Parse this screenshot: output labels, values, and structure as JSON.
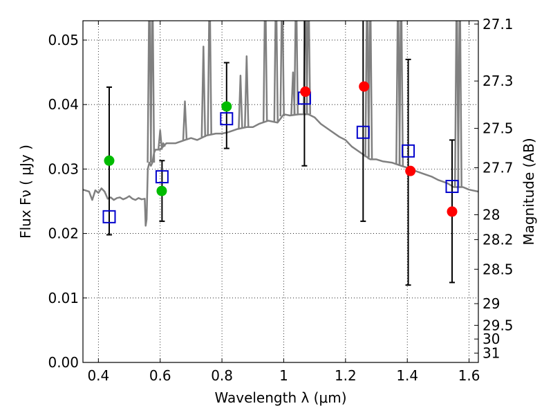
{
  "chart_data": {
    "type": "scatter",
    "xlabel": "Wavelength  λ (μm)",
    "ylabel_left": "Flux  Fν  ( μJy )",
    "ylabel_right": "Magnitude (AB)",
    "xlim": [
      0.35,
      1.63
    ],
    "ylim": [
      0.0,
      0.053
    ],
    "grid": true,
    "x_ticks": [
      0.4,
      0.6,
      0.8,
      1.0,
      1.2,
      1.4,
      1.6
    ],
    "x_tick_labels": [
      "0.4",
      "0.6",
      "0.8",
      "1",
      "1.2",
      "1.4",
      "1.6"
    ],
    "y_ticks": [
      0.0,
      0.01,
      0.02,
      0.03,
      0.04,
      0.05
    ],
    "y_tick_labels": [
      "0.00",
      "0.01",
      "0.02",
      "0.03",
      "0.04",
      "0.05"
    ],
    "mag_tick_labels": [
      "27.1",
      "27.3",
      "27.5",
      "27.7",
      "28",
      "28.2",
      "28.5",
      "29",
      "29.5",
      "30",
      "31"
    ],
    "mag_tick_values": [
      27.1,
      27.3,
      27.5,
      27.7,
      28.0,
      28.2,
      28.5,
      29.0,
      29.5,
      30.0,
      31.0
    ],
    "colors": {
      "model": "#808080",
      "green": "#00bb00",
      "red": "#ff0000",
      "box": "#0000cc",
      "error": "#000000"
    },
    "model_spectrum": {
      "x": [
        0.35,
        0.37,
        0.38,
        0.39,
        0.4,
        0.41,
        0.42,
        0.43,
        0.44,
        0.45,
        0.46,
        0.47,
        0.48,
        0.49,
        0.5,
        0.51,
        0.52,
        0.53,
        0.54,
        0.55,
        0.553,
        0.556,
        0.56,
        0.565,
        0.57,
        0.575,
        0.58,
        0.585,
        0.6,
        0.62,
        0.65,
        0.68,
        0.7,
        0.72,
        0.75,
        0.78,
        0.8,
        0.82,
        0.85,
        0.88,
        0.9,
        0.92,
        0.95,
        0.98,
        1.0,
        1.02,
        1.05,
        1.08,
        1.1,
        1.12,
        1.15,
        1.18,
        1.2,
        1.22,
        1.25,
        1.28,
        1.3,
        1.32,
        1.35,
        1.38,
        1.4,
        1.42,
        1.45,
        1.48,
        1.5,
        1.53,
        1.55,
        1.58,
        1.6,
        1.63
      ],
      "y": [
        0.0268,
        0.0265,
        0.0252,
        0.0267,
        0.0263,
        0.027,
        0.0265,
        0.0254,
        0.0256,
        0.0252,
        0.0255,
        0.0256,
        0.0253,
        0.0255,
        0.0258,
        0.0254,
        0.0252,
        0.0255,
        0.0253,
        0.0254,
        0.0212,
        0.0222,
        0.03,
        0.031,
        0.0305,
        0.031,
        0.0325,
        0.033,
        0.033,
        0.034,
        0.034,
        0.0345,
        0.0348,
        0.0345,
        0.0352,
        0.0355,
        0.0355,
        0.0357,
        0.0362,
        0.0365,
        0.0365,
        0.037,
        0.0375,
        0.0372,
        0.0385,
        0.0383,
        0.0385,
        0.0385,
        0.038,
        0.037,
        0.036,
        0.035,
        0.0345,
        0.0335,
        0.0325,
        0.0315,
        0.0315,
        0.0312,
        0.031,
        0.0305,
        0.0302,
        0.0298,
        0.0293,
        0.0288,
        0.0283,
        0.0278,
        0.0272,
        0.0272,
        0.0268,
        0.0265
      ]
    },
    "emission_lines": [
      {
        "x": 0.565,
        "y": 0.06
      },
      {
        "x": 0.575,
        "y": 0.06
      },
      {
        "x": 0.6,
        "y": 0.036
      },
      {
        "x": 0.61,
        "y": 0.034
      },
      {
        "x": 0.68,
        "y": 0.0405
      },
      {
        "x": 0.74,
        "y": 0.049
      },
      {
        "x": 0.76,
        "y": 0.06
      },
      {
        "x": 0.86,
        "y": 0.0445
      },
      {
        "x": 0.88,
        "y": 0.0475
      },
      {
        "x": 0.94,
        "y": 0.06
      },
      {
        "x": 0.975,
        "y": 0.06
      },
      {
        "x": 0.995,
        "y": 0.06
      },
      {
        "x": 1.03,
        "y": 0.045
      },
      {
        "x": 1.04,
        "y": 0.06
      },
      {
        "x": 1.07,
        "y": 0.06
      },
      {
        "x": 1.08,
        "y": 0.06
      },
      {
        "x": 1.27,
        "y": 0.06
      },
      {
        "x": 1.28,
        "y": 0.06
      },
      {
        "x": 1.37,
        "y": 0.06
      },
      {
        "x": 1.38,
        "y": 0.06
      },
      {
        "x": 1.56,
        "y": 0.06
      },
      {
        "x": 1.57,
        "y": 0.06
      }
    ],
    "green_points": [
      {
        "x": 0.435,
        "y": 0.0313
      },
      {
        "x": 0.605,
        "y": 0.0266
      },
      {
        "x": 0.815,
        "y": 0.0397
      }
    ],
    "red_points": [
      {
        "x": 1.07,
        "y": 0.042
      },
      {
        "x": 1.26,
        "y": 0.0428
      },
      {
        "x": 1.41,
        "y": 0.0297
      },
      {
        "x": 1.545,
        "y": 0.0234
      }
    ],
    "boxes": [
      {
        "x": 0.435,
        "y": 0.0226,
        "err_low": 0.0198,
        "err_high": 0.0427
      },
      {
        "x": 0.606,
        "y": 0.0288,
        "err_low": 0.0219,
        "err_high": 0.0313
      },
      {
        "x": 0.815,
        "y": 0.0378,
        "err_low": 0.0332,
        "err_high": 0.0465
      },
      {
        "x": 1.067,
        "y": 0.041,
        "err_low": 0.0305,
        "err_high": 0.06
      },
      {
        "x": 1.257,
        "y": 0.0357,
        "err_low": 0.0219,
        "err_high": 0.06
      },
      {
        "x": 1.403,
        "y": 0.0328,
        "err_low": 0.012,
        "err_high": 0.047
      },
      {
        "x": 1.545,
        "y": 0.0273,
        "err_low": 0.0124,
        "err_high": 0.0345
      }
    ]
  }
}
